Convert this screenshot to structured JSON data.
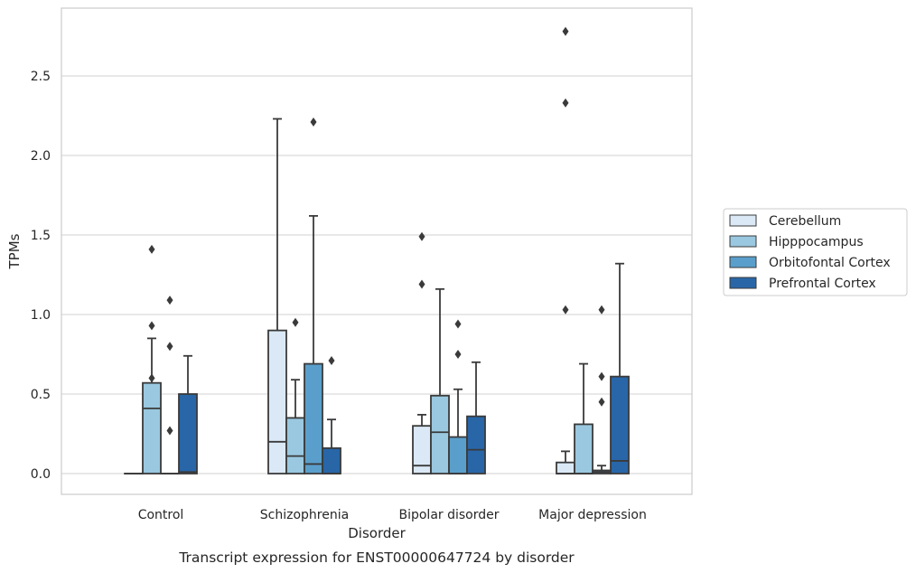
{
  "caption": "Transcript expression for ENST00000647724 by disorder",
  "chart_data": {
    "type": "box",
    "title": "",
    "xlabel": "Disorder",
    "ylabel": "TPMs",
    "ylim": [
      -0.13,
      2.92
    ],
    "yticks": [
      "0.0",
      "0.5",
      "1.0",
      "1.5",
      "2.0",
      "2.5"
    ],
    "grid": true,
    "legend_position": "right",
    "categories": [
      "Control",
      "Schizophrenia",
      "Bipolar disorder",
      "Major depression"
    ],
    "series": [
      {
        "name": "Cerebellum",
        "color": "#dbe9f6",
        "boxes": [
          {
            "q1": 0.0,
            "median": 0.0,
            "q3": 0.0,
            "whisker_low": 0.0,
            "whisker_high": 0.0,
            "outliers": []
          },
          {
            "q1": 0.0,
            "median": 0.2,
            "q3": 0.9,
            "whisker_low": 0.0,
            "whisker_high": 2.23,
            "outliers": []
          },
          {
            "q1": 0.0,
            "median": 0.05,
            "q3": 0.3,
            "whisker_low": 0.0,
            "whisker_high": 0.37,
            "outliers": [
              1.19,
              1.49
            ]
          },
          {
            "q1": 0.0,
            "median": 0.0,
            "q3": 0.07,
            "whisker_low": 0.0,
            "whisker_high": 0.14,
            "outliers": [
              1.03,
              2.33,
              2.78
            ]
          }
        ]
      },
      {
        "name": "Hipppocampus",
        "color": "#9ac8e0",
        "boxes": [
          {
            "q1": 0.0,
            "median": 0.41,
            "q3": 0.57,
            "whisker_low": 0.0,
            "whisker_high": 0.85,
            "outliers": [
              0.6,
              0.93,
              1.41
            ]
          },
          {
            "q1": 0.0,
            "median": 0.11,
            "q3": 0.35,
            "whisker_low": 0.0,
            "whisker_high": 0.59,
            "outliers": [
              0.95
            ]
          },
          {
            "q1": 0.0,
            "median": 0.26,
            "q3": 0.49,
            "whisker_low": 0.0,
            "whisker_high": 1.16,
            "outliers": []
          },
          {
            "q1": 0.0,
            "median": 0.0,
            "q3": 0.31,
            "whisker_low": 0.0,
            "whisker_high": 0.69,
            "outliers": []
          }
        ]
      },
      {
        "name": "Orbitofontal Cortex",
        "color": "#5a9fcb",
        "boxes": [
          {
            "q1": 0.0,
            "median": 0.0,
            "q3": 0.0,
            "whisker_low": 0.0,
            "whisker_high": 0.0,
            "outliers": [
              0.27,
              0.8,
              1.09
            ]
          },
          {
            "q1": 0.0,
            "median": 0.06,
            "q3": 0.69,
            "whisker_low": 0.0,
            "whisker_high": 1.62,
            "outliers": [
              2.21
            ]
          },
          {
            "q1": 0.0,
            "median": 0.0,
            "q3": 0.23,
            "whisker_low": 0.0,
            "whisker_high": 0.53,
            "outliers": [
              0.75,
              0.94
            ]
          },
          {
            "q1": 0.0,
            "median": 0.01,
            "q3": 0.02,
            "whisker_low": 0.0,
            "whisker_high": 0.05,
            "outliers": [
              0.45,
              0.61,
              1.03
            ]
          }
        ]
      },
      {
        "name": "Prefrontal Cortex",
        "color": "#2866a8",
        "boxes": [
          {
            "q1": 0.0,
            "median": 0.01,
            "q3": 0.5,
            "whisker_low": 0.0,
            "whisker_high": 0.74,
            "outliers": []
          },
          {
            "q1": 0.0,
            "median": 0.0,
            "q3": 0.16,
            "whisker_low": 0.0,
            "whisker_high": 0.34,
            "outliers": [
              0.71
            ]
          },
          {
            "q1": 0.0,
            "median": 0.15,
            "q3": 0.36,
            "whisker_low": 0.0,
            "whisker_high": 0.7,
            "outliers": []
          },
          {
            "q1": 0.0,
            "median": 0.08,
            "q3": 0.61,
            "whisker_low": 0.0,
            "whisker_high": 1.32,
            "outliers": []
          }
        ]
      }
    ]
  }
}
